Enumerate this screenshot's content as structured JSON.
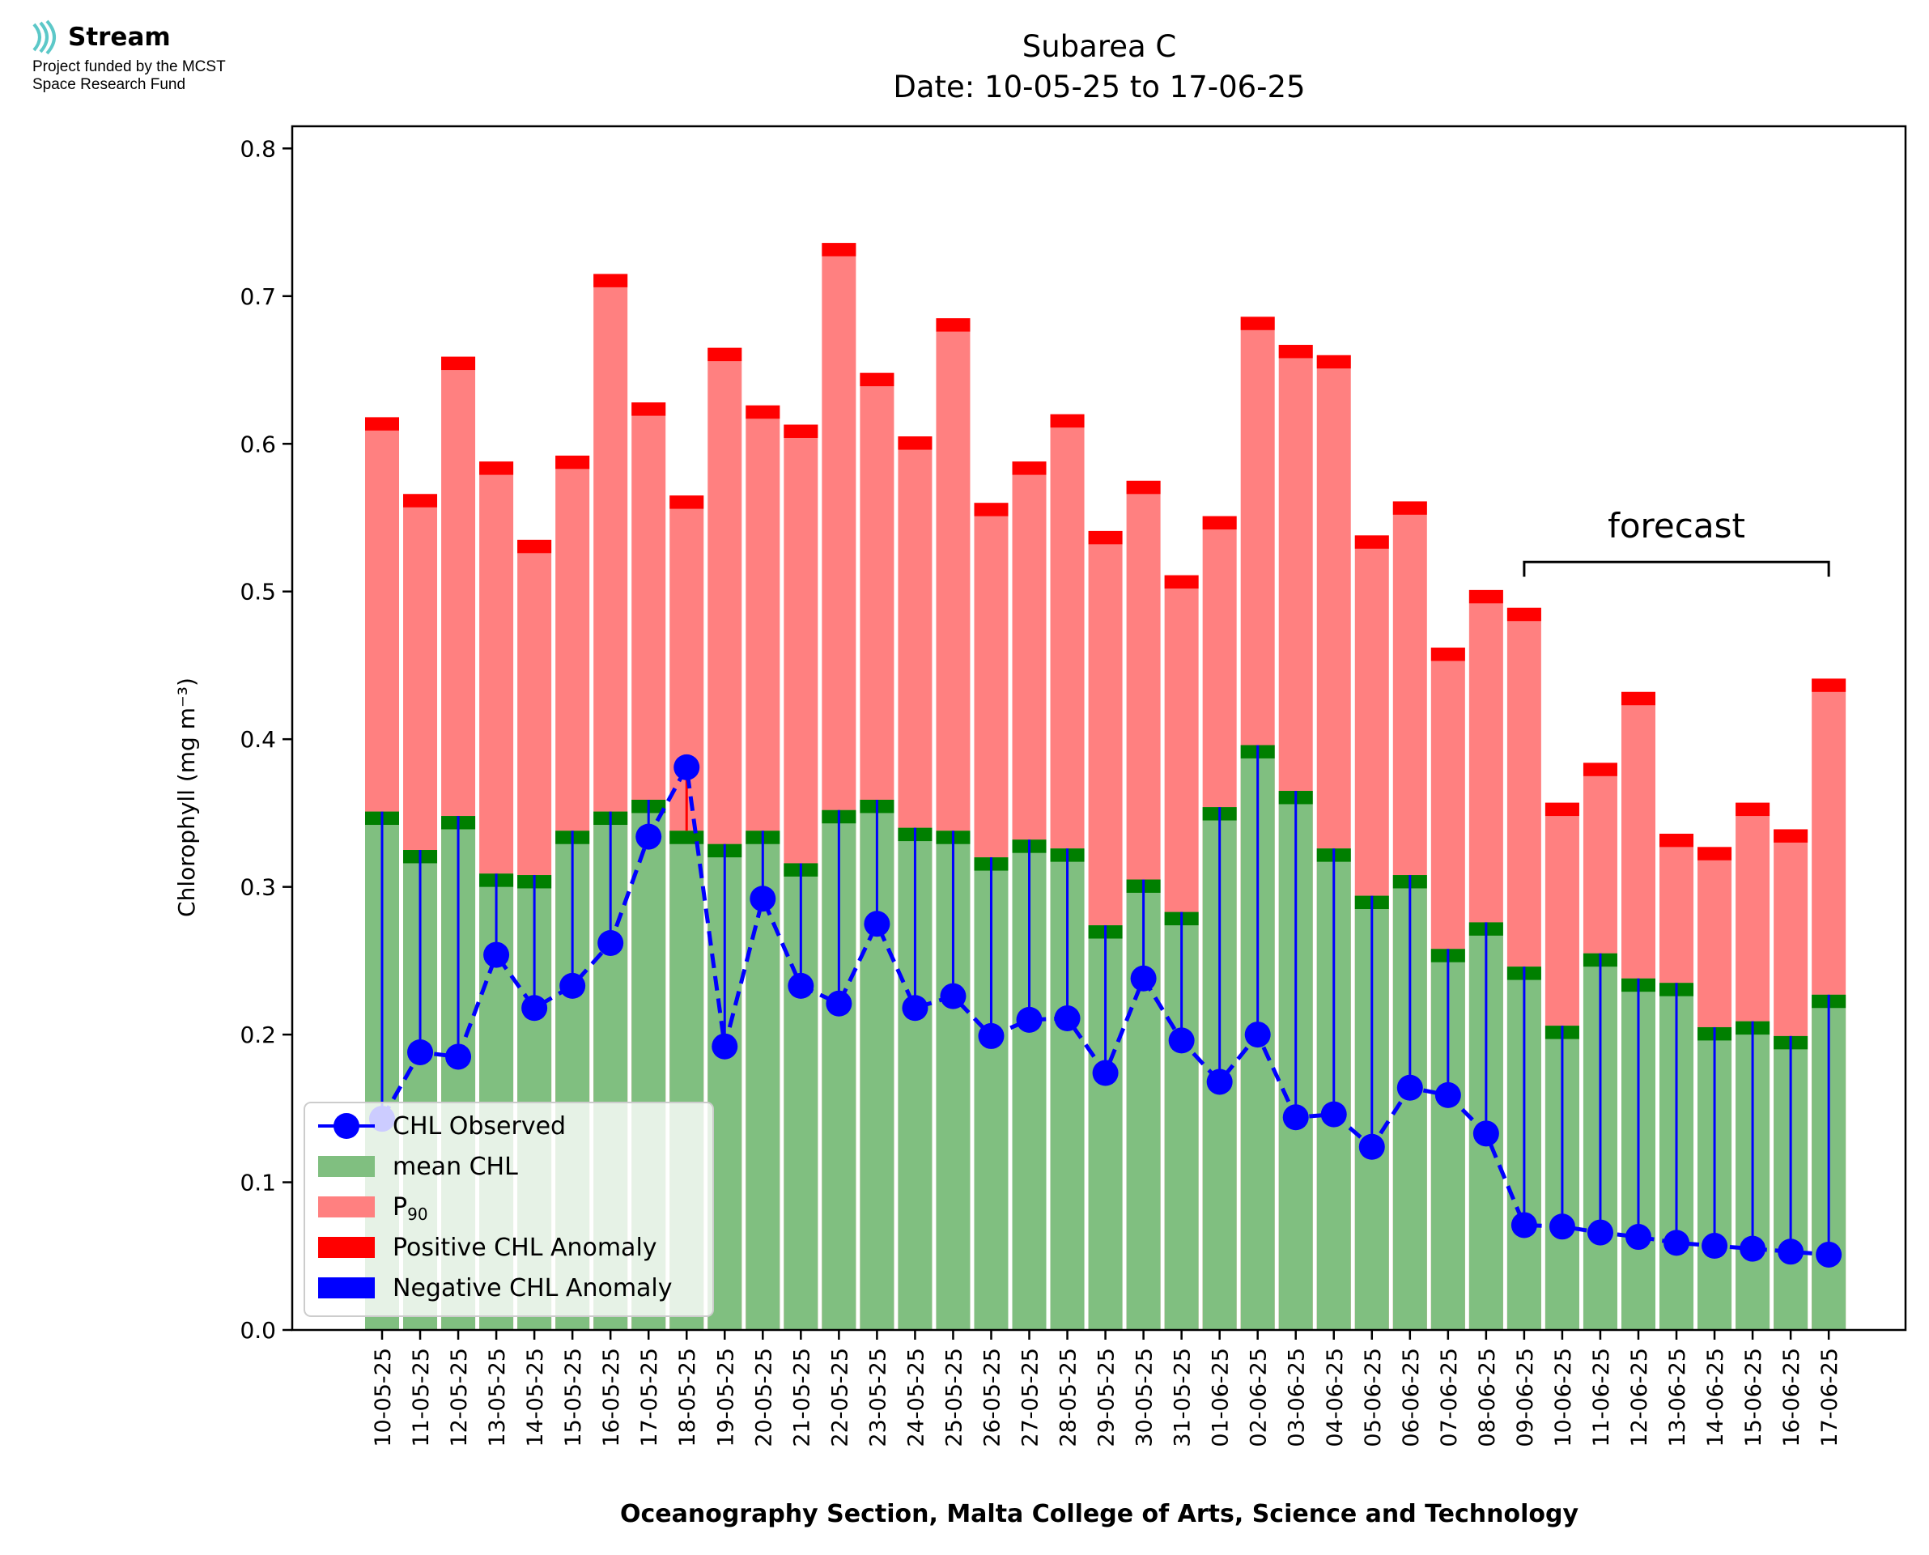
{
  "logo": {
    "name": "Stream",
    "funding_line_1": "Project funded by the MCST",
    "funding_line_2": "Space Research Fund"
  },
  "chart_data": {
    "type": "bar",
    "title": "Subarea C",
    "subtitle": "Date: 10-05-25 to 17-06-25",
    "xlabel": "Oceanography Section, Malta College of Arts, Science and Technology",
    "ylabel": "Chlorophyll (mg m⁻³)",
    "ylim": [
      0,
      0.815
    ],
    "yticks": [
      "0.0",
      "0.1",
      "0.2",
      "0.3",
      "0.4",
      "0.5",
      "0.6",
      "0.7",
      "0.8"
    ],
    "grid": false,
    "legend_position": "lower-left",
    "categories": [
      "10-05-25",
      "11-05-25",
      "12-05-25",
      "13-05-25",
      "14-05-25",
      "15-05-25",
      "16-05-25",
      "17-05-25",
      "18-05-25",
      "19-05-25",
      "20-05-25",
      "21-05-25",
      "22-05-25",
      "23-05-25",
      "24-05-25",
      "25-05-25",
      "26-05-25",
      "27-05-25",
      "28-05-25",
      "29-05-25",
      "30-05-25",
      "31-05-25",
      "01-06-25",
      "02-06-25",
      "03-06-25",
      "04-06-25",
      "05-06-25",
      "06-06-25",
      "07-06-25",
      "08-06-25",
      "09-06-25",
      "10-06-25",
      "11-06-25",
      "12-06-25",
      "13-06-25",
      "14-06-25",
      "15-06-25",
      "16-06-25",
      "17-06-25"
    ],
    "series": [
      {
        "name": "mean CHL",
        "color": "#80bf80",
        "values": [
          0.351,
          0.325,
          0.348,
          0.309,
          0.308,
          0.338,
          0.351,
          0.359,
          0.338,
          0.329,
          0.338,
          0.316,
          0.352,
          0.359,
          0.34,
          0.338,
          0.32,
          0.332,
          0.326,
          0.274,
          0.305,
          0.283,
          0.354,
          0.396,
          0.365,
          0.326,
          0.294,
          0.308,
          0.258,
          0.276,
          0.246,
          0.206,
          0.255,
          0.238,
          0.235,
          0.205,
          0.209,
          0.199,
          0.227
        ]
      },
      {
        "name": "P90",
        "color": "#ff8080",
        "values": [
          0.618,
          0.566,
          0.659,
          0.588,
          0.535,
          0.592,
          0.715,
          0.628,
          0.565,
          0.665,
          0.626,
          0.613,
          0.736,
          0.648,
          0.605,
          0.685,
          0.56,
          0.588,
          0.62,
          0.541,
          0.575,
          0.511,
          0.551,
          0.686,
          0.667,
          0.66,
          0.538,
          0.561,
          0.462,
          0.501,
          0.489,
          0.357,
          0.384,
          0.432,
          0.336,
          0.327,
          0.357,
          0.339,
          0.441
        ]
      },
      {
        "name": "CHL Observed",
        "color": "#0000ff",
        "values": [
          0.143,
          0.188,
          0.185,
          0.254,
          0.218,
          0.233,
          0.262,
          0.334,
          0.381,
          0.192,
          0.292,
          0.233,
          0.221,
          0.275,
          0.218,
          0.226,
          0.199,
          0.21,
          0.211,
          0.174,
          0.238,
          0.196,
          0.168,
          0.2,
          0.144,
          0.146,
          0.124,
          0.164,
          0.159,
          0.133,
          0.071,
          0.07,
          0.066,
          0.063,
          0.059,
          0.057,
          0.055,
          0.053,
          0.051
        ]
      }
    ],
    "legend": {
      "observed": "CHL Observed",
      "mean": "mean CHL",
      "p90": "P",
      "p90_sub": "90",
      "positive": "Positive CHL Anomaly",
      "negative": "Negative CHL Anomaly"
    },
    "anomaly_colors": {
      "positive": "#ff0000",
      "negative": "#0000ff",
      "mean_cap": "#007f00"
    },
    "forecast": {
      "label": "forecast",
      "from": "09-06-25",
      "to": "17-06-25"
    }
  }
}
